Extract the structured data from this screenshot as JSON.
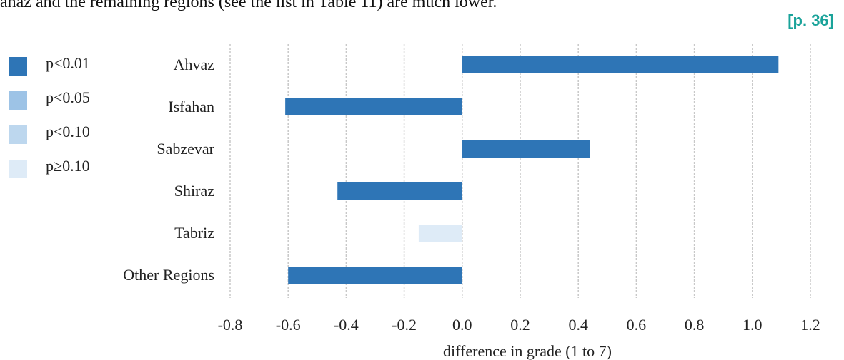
{
  "page": {
    "clipped_text": "ahaz and the remaining regions (see the list in Table 11) are much lower.",
    "page_ref": "[p. 36]"
  },
  "chart_data": {
    "type": "bar",
    "orientation": "horizontal",
    "categories": [
      "Ahvaz",
      "Isfahan",
      "Sabzevar",
      "Shiraz",
      "Tabriz",
      "Other Regions"
    ],
    "values": [
      1.09,
      -0.61,
      0.44,
      -0.43,
      -0.15,
      -0.6
    ],
    "significance": [
      "p<0.01",
      "p<0.01",
      "p<0.01",
      "p<0.01",
      "p≥0.10",
      "p<0.01"
    ],
    "xlabel": "difference in grade (1 to 7)",
    "xlim": [
      -0.8,
      1.2
    ],
    "xticks": [
      "-0.8",
      "-0.6",
      "-0.4",
      "-0.2",
      "0.0",
      "0.2",
      "0.4",
      "0.6",
      "0.8",
      "1.0",
      "1.2"
    ],
    "xtick_values": [
      -0.8,
      -0.6,
      -0.4,
      -0.2,
      0.0,
      0.2,
      0.4,
      0.6,
      0.8,
      1.0,
      1.2
    ],
    "grid": "vertical dashed",
    "legend_placement": "left",
    "legend": [
      {
        "label": "p<0.01",
        "color": "#2e75b6"
      },
      {
        "label": "p<0.05",
        "color": "#9dc3e6"
      },
      {
        "label": "p<0.10",
        "color": "#bdd7ee"
      },
      {
        "label": "p≥0.10",
        "color": "#deebf7"
      }
    ]
  }
}
